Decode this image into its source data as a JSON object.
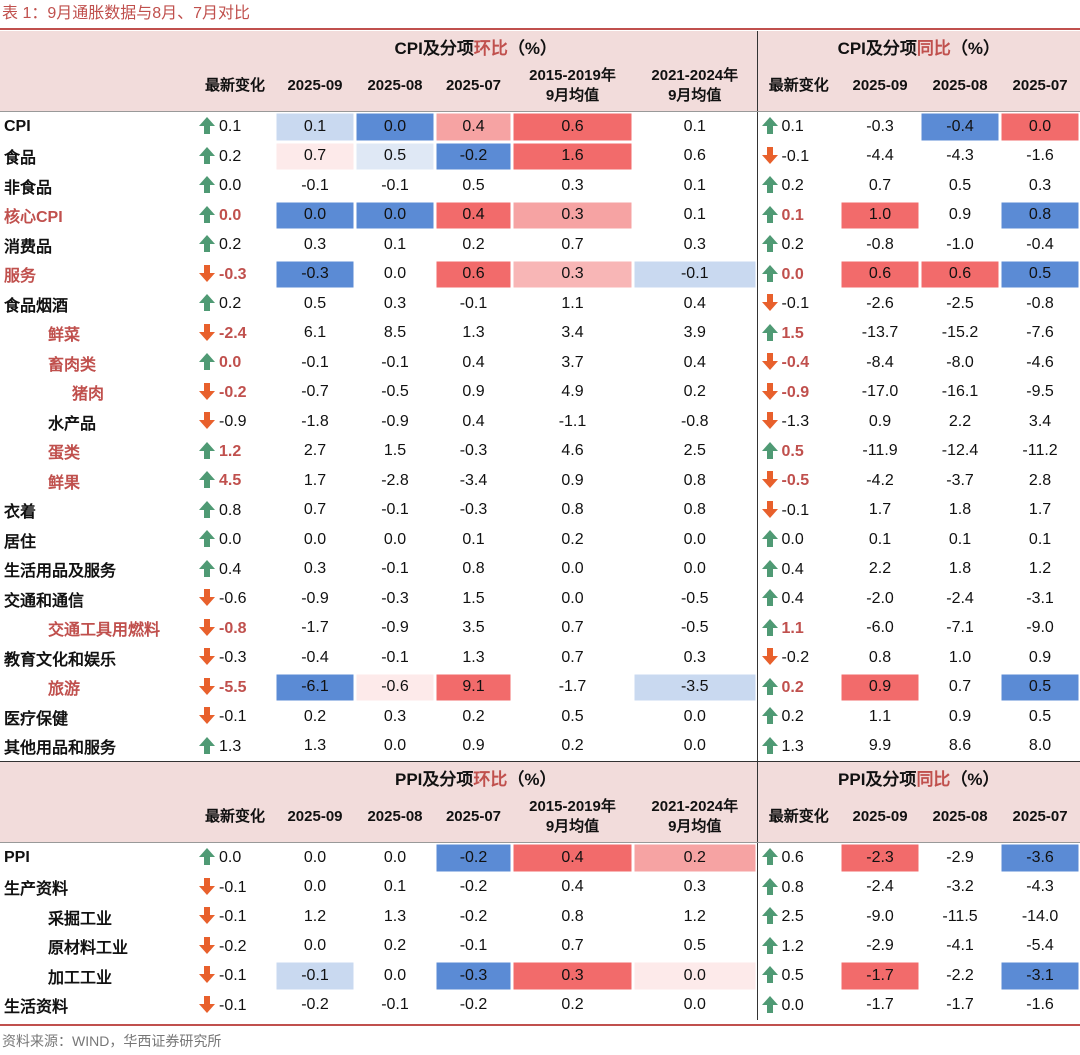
{
  "title": "表 1：9月通胀数据与8月、7月对比",
  "source": "资料来源：WIND，华西证券研究所",
  "sections": [
    {
      "mom_header": {
        "prefix": "CPI及分项",
        "highlight": "环比",
        "suffix": "（%）"
      },
      "yoy_header": {
        "prefix": "CPI及分项",
        "highlight": "同比",
        "suffix": "（%）"
      },
      "mom_columns": [
        [
          "最新变化"
        ],
        [
          "2025-09"
        ],
        [
          "2025-08"
        ],
        [
          "2025-07"
        ],
        [
          "2015-2019年",
          "9月均值"
        ],
        [
          "2021-2024年",
          "9月均值"
        ]
      ],
      "yoy_columns": [
        [
          "最新变化"
        ],
        [
          "2025-09"
        ],
        [
          "2025-08"
        ],
        [
          "2025-07"
        ]
      ],
      "rows": [
        {
          "label": "CPI",
          "bold": true,
          "mom": [
            "0.1",
            "0.1",
            "0.0",
            "0.4",
            "0.6",
            "0.1"
          ],
          "yoy": [
            "0.1",
            "-0.3",
            "-0.4",
            "0.0"
          ],
          "mom_fill": {
            "1": "#c9d9f0",
            "2": "#5b8bd5",
            "3": "#f6a3a3",
            "4": "#f26b6b"
          },
          "yoy_fill": {
            "2": "#5b8bd5",
            "3": "#f26b6b"
          }
        },
        {
          "label": "食品",
          "mom": [
            "0.2",
            "0.7",
            "0.5",
            "-0.2",
            "1.6",
            "0.6"
          ],
          "yoy": [
            "-0.1",
            "-4.4",
            "-4.3",
            "-1.6"
          ],
          "mom_fill": {
            "1": "#fdeaea",
            "2": "#dfe8f5",
            "3": "#5b8bd5",
            "4": "#f26b6b"
          }
        },
        {
          "label": "非食品",
          "mom": [
            "0.0",
            "-0.1",
            "-0.1",
            "0.5",
            "0.3",
            "0.1"
          ],
          "yoy": [
            "0.2",
            "0.7",
            "0.5",
            "0.3"
          ]
        },
        {
          "label": "核心CPI",
          "highlight": true,
          "mom": [
            "0.0",
            "0.0",
            "0.0",
            "0.4",
            "0.3",
            "0.1"
          ],
          "yoy": [
            "0.1",
            "1.0",
            "0.9",
            "0.8"
          ],
          "mom_fill": {
            "1": "#5b8bd5",
            "2": "#5b8bd5",
            "3": "#f26b6b",
            "4": "#f6a3a3"
          },
          "yoy_fill": {
            "1": "#f26b6b",
            "3": "#5b8bd5"
          }
        },
        {
          "label": "消费品",
          "mom": [
            "0.2",
            "0.3",
            "0.1",
            "0.2",
            "0.7",
            "0.3"
          ],
          "yoy": [
            "0.2",
            "-0.8",
            "-1.0",
            "-0.4"
          ]
        },
        {
          "label": "服务",
          "highlight": true,
          "mom": [
            "-0.3",
            "-0.3",
            "0.0",
            "0.6",
            "0.3",
            "-0.1"
          ],
          "yoy": [
            "0.0",
            "0.6",
            "0.6",
            "0.5"
          ],
          "mom_fill": {
            "1": "#5b8bd5",
            "3": "#f26b6b",
            "4": "#f8b6b6",
            "5": "#c9d9f0"
          },
          "yoy_fill": {
            "1": "#f26b6b",
            "2": "#f26b6b",
            "3": "#5b8bd5"
          }
        },
        {
          "label": "食品烟酒",
          "mom": [
            "0.2",
            "0.5",
            "0.3",
            "-0.1",
            "1.1",
            "0.4"
          ],
          "yoy": [
            "-0.1",
            "-2.6",
            "-2.5",
            "-0.8"
          ]
        },
        {
          "label": "鲜菜",
          "indent": 1,
          "highlight": true,
          "mom": [
            "-2.4",
            "6.1",
            "8.5",
            "1.3",
            "3.4",
            "3.9"
          ],
          "yoy": [
            "1.5",
            "-13.7",
            "-15.2",
            "-7.6"
          ]
        },
        {
          "label": "畜肉类",
          "indent": 1,
          "highlight": true,
          "mom": [
            "0.0",
            "-0.1",
            "-0.1",
            "0.4",
            "3.7",
            "0.4"
          ],
          "yoy": [
            "-0.4",
            "-8.4",
            "-8.0",
            "-4.6"
          ]
        },
        {
          "label": "猪肉",
          "indent": 2,
          "highlight": true,
          "mom": [
            "-0.2",
            "-0.7",
            "-0.5",
            "0.9",
            "4.9",
            "0.2"
          ],
          "yoy": [
            "-0.9",
            "-17.0",
            "-16.1",
            "-9.5"
          ]
        },
        {
          "label": "水产品",
          "indent": 1,
          "mom": [
            "-0.9",
            "-1.8",
            "-0.9",
            "0.4",
            "-1.1",
            "-0.8"
          ],
          "yoy": [
            "-1.3",
            "0.9",
            "2.2",
            "3.4"
          ]
        },
        {
          "label": "蛋类",
          "indent": 1,
          "highlight": true,
          "mom": [
            "1.2",
            "2.7",
            "1.5",
            "-0.3",
            "4.6",
            "2.5"
          ],
          "yoy": [
            "0.5",
            "-11.9",
            "-12.4",
            "-11.2"
          ]
        },
        {
          "label": "鲜果",
          "indent": 1,
          "highlight": true,
          "mom": [
            "4.5",
            "1.7",
            "-2.8",
            "-3.4",
            "0.9",
            "0.8"
          ],
          "yoy": [
            "-0.5",
            "-4.2",
            "-3.7",
            "2.8"
          ]
        },
        {
          "label": "衣着",
          "mom": [
            "0.8",
            "0.7",
            "-0.1",
            "-0.3",
            "0.8",
            "0.8"
          ],
          "yoy": [
            "-0.1",
            "1.7",
            "1.8",
            "1.7"
          ]
        },
        {
          "label": "居住",
          "mom": [
            "0.0",
            "0.0",
            "0.0",
            "0.1",
            "0.2",
            "0.0"
          ],
          "yoy": [
            "0.0",
            "0.1",
            "0.1",
            "0.1"
          ]
        },
        {
          "label": "生活用品及服务",
          "mom": [
            "0.4",
            "0.3",
            "-0.1",
            "0.8",
            "0.0",
            "0.0"
          ],
          "yoy": [
            "0.4",
            "2.2",
            "1.8",
            "1.2"
          ]
        },
        {
          "label": "交通和通信",
          "mom": [
            "-0.6",
            "-0.9",
            "-0.3",
            "1.5",
            "0.0",
            "-0.5"
          ],
          "yoy": [
            "0.4",
            "-2.0",
            "-2.4",
            "-3.1"
          ]
        },
        {
          "label": "交通工具用燃料",
          "indent": 1,
          "highlight": true,
          "mom": [
            "-0.8",
            "-1.7",
            "-0.9",
            "3.5",
            "0.7",
            "-0.5"
          ],
          "yoy": [
            "1.1",
            "-6.0",
            "-7.1",
            "-9.0"
          ]
        },
        {
          "label": "教育文化和娱乐",
          "mom": [
            "-0.3",
            "-0.4",
            "-0.1",
            "1.3",
            "0.7",
            "0.3"
          ],
          "yoy": [
            "-0.2",
            "0.8",
            "1.0",
            "0.9"
          ]
        },
        {
          "label": "旅游",
          "indent": 1,
          "highlight": true,
          "mom": [
            "-5.5",
            "-6.1",
            "-0.6",
            "9.1",
            "-1.7",
            "-3.5"
          ],
          "yoy": [
            "0.2",
            "0.9",
            "0.7",
            "0.5"
          ],
          "mom_fill": {
            "1": "#5b8bd5",
            "2": "#fdeaea",
            "3": "#f26b6b",
            "5": "#c9d9f0"
          },
          "yoy_fill": {
            "1": "#f26b6b",
            "3": "#5b8bd5"
          }
        },
        {
          "label": "医疗保健",
          "mom": [
            "-0.1",
            "0.2",
            "0.3",
            "0.2",
            "0.5",
            "0.0"
          ],
          "yoy": [
            "0.2",
            "1.1",
            "0.9",
            "0.5"
          ]
        },
        {
          "label": "其他用品和服务",
          "mom": [
            "1.3",
            "1.3",
            "0.0",
            "0.9",
            "0.2",
            "0.0"
          ],
          "yoy": [
            "1.3",
            "9.9",
            "8.6",
            "8.0"
          ]
        }
      ]
    },
    {
      "mom_header": {
        "prefix": "PPI及分项",
        "highlight": "环比",
        "suffix": "（%）"
      },
      "yoy_header": {
        "prefix": "PPI及分项",
        "highlight": "同比",
        "suffix": "（%）"
      },
      "mom_columns": [
        [
          "最新变化"
        ],
        [
          "2025-09"
        ],
        [
          "2025-08"
        ],
        [
          "2025-07"
        ],
        [
          "2015-2019年",
          "9月均值"
        ],
        [
          "2021-2024年",
          "9月均值"
        ]
      ],
      "yoy_columns": [
        [
          "最新变化"
        ],
        [
          "2025-09"
        ],
        [
          "2025-08"
        ],
        [
          "2025-07"
        ]
      ],
      "rows": [
        {
          "label": "PPI",
          "bold": true,
          "mom": [
            "0.0",
            "0.0",
            "0.0",
            "-0.2",
            "0.4",
            "0.2"
          ],
          "yoy": [
            "0.6",
            "-2.3",
            "-2.9",
            "-3.6"
          ],
          "mom_fill": {
            "3": "#5b8bd5",
            "4": "#f26b6b",
            "5": "#f6a3a3"
          },
          "yoy_fill": {
            "1": "#f26b6b",
            "3": "#5b8bd5"
          }
        },
        {
          "label": "生产资料",
          "mom": [
            "-0.1",
            "0.0",
            "0.1",
            "-0.2",
            "0.4",
            "0.3"
          ],
          "yoy": [
            "0.8",
            "-2.4",
            "-3.2",
            "-4.3"
          ]
        },
        {
          "label": "采掘工业",
          "indent": 1,
          "mom": [
            "-0.1",
            "1.2",
            "1.3",
            "-0.2",
            "0.8",
            "1.2"
          ],
          "yoy": [
            "2.5",
            "-9.0",
            "-11.5",
            "-14.0"
          ]
        },
        {
          "label": "原材料工业",
          "indent": 1,
          "mom": [
            "-0.2",
            "0.0",
            "0.2",
            "-0.1",
            "0.7",
            "0.5"
          ],
          "yoy": [
            "1.2",
            "-2.9",
            "-4.1",
            "-5.4"
          ]
        },
        {
          "label": "加工工业",
          "indent": 1,
          "mom": [
            "-0.1",
            "-0.1",
            "0.0",
            "-0.3",
            "0.3",
            "0.0"
          ],
          "yoy": [
            "0.5",
            "-1.7",
            "-2.2",
            "-3.1"
          ],
          "mom_fill": {
            "1": "#c9d9f0",
            "3": "#5b8bd5",
            "4": "#f26b6b",
            "5": "#fdeaea"
          },
          "yoy_fill": {
            "1": "#f26b6b",
            "3": "#5b8bd5"
          }
        },
        {
          "label": "生活资料",
          "mom": [
            "-0.1",
            "-0.2",
            "-0.1",
            "-0.2",
            "0.2",
            "0.0"
          ],
          "yoy": [
            "0.0",
            "-1.7",
            "-1.7",
            "-1.6"
          ]
        }
      ]
    }
  ]
}
